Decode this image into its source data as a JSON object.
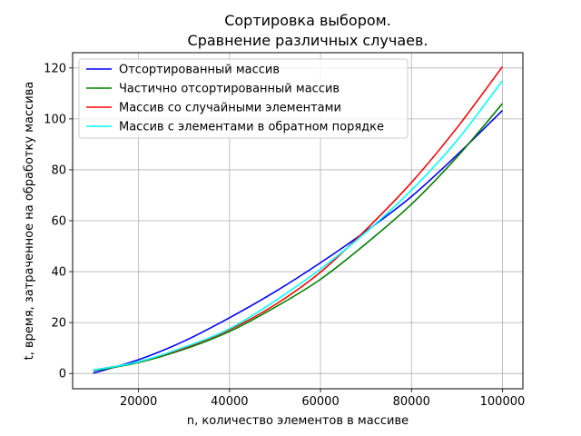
{
  "chart_data": {
    "type": "line",
    "title": "Сортировка выбором.\nСравнение различных случаев.",
    "xlabel": "n, количество элементов в массиве",
    "ylabel": "t, время, затраченное на обработку массива",
    "xlim": [
      5500,
      104500
    ],
    "ylim": [
      -6,
      126
    ],
    "xticks": [
      20000,
      40000,
      60000,
      80000,
      100000
    ],
    "yticks": [
      0,
      20,
      40,
      60,
      80,
      100,
      120
    ],
    "grid": true,
    "legend_position": "top-left",
    "series": [
      {
        "name": "Отсортированный массив",
        "color": "#0000ff",
        "x": [
          10000,
          20000,
          30000,
          40000,
          50000,
          60000,
          70000,
          80000,
          90000,
          100000
        ],
        "y": [
          0.1,
          5.4,
          12.7,
          21.9,
          32.1,
          43.5,
          55.9,
          69.5,
          85.8,
          103.3
        ]
      },
      {
        "name": "Частично отсортированный массив",
        "color": "#008000",
        "x": [
          10000,
          20000,
          30000,
          40000,
          50000,
          60000,
          70000,
          80000,
          90000,
          100000
        ],
        "y": [
          1.0,
          4.3,
          9.5,
          16.5,
          26.0,
          37.0,
          51.0,
          66.5,
          85.0,
          106.0
        ]
      },
      {
        "name": "Массив со случайными элементами",
        "color": "#ff0000",
        "x": [
          10000,
          20000,
          30000,
          40000,
          50000,
          60000,
          70000,
          80000,
          90000,
          100000
        ],
        "y": [
          1.3,
          4.6,
          10.0,
          17.2,
          27.0,
          39.8,
          56.5,
          75.0,
          96.5,
          120.5
        ]
      },
      {
        "name": "Массив с элементами в обратном порядке",
        "color": "#00ffff",
        "x": [
          10000,
          20000,
          30000,
          40000,
          50000,
          60000,
          70000,
          80000,
          90000,
          100000
        ],
        "y": [
          1.3,
          4.6,
          10.3,
          17.6,
          28.5,
          41.0,
          55.5,
          72.0,
          91.5,
          115.0
        ]
      }
    ]
  }
}
